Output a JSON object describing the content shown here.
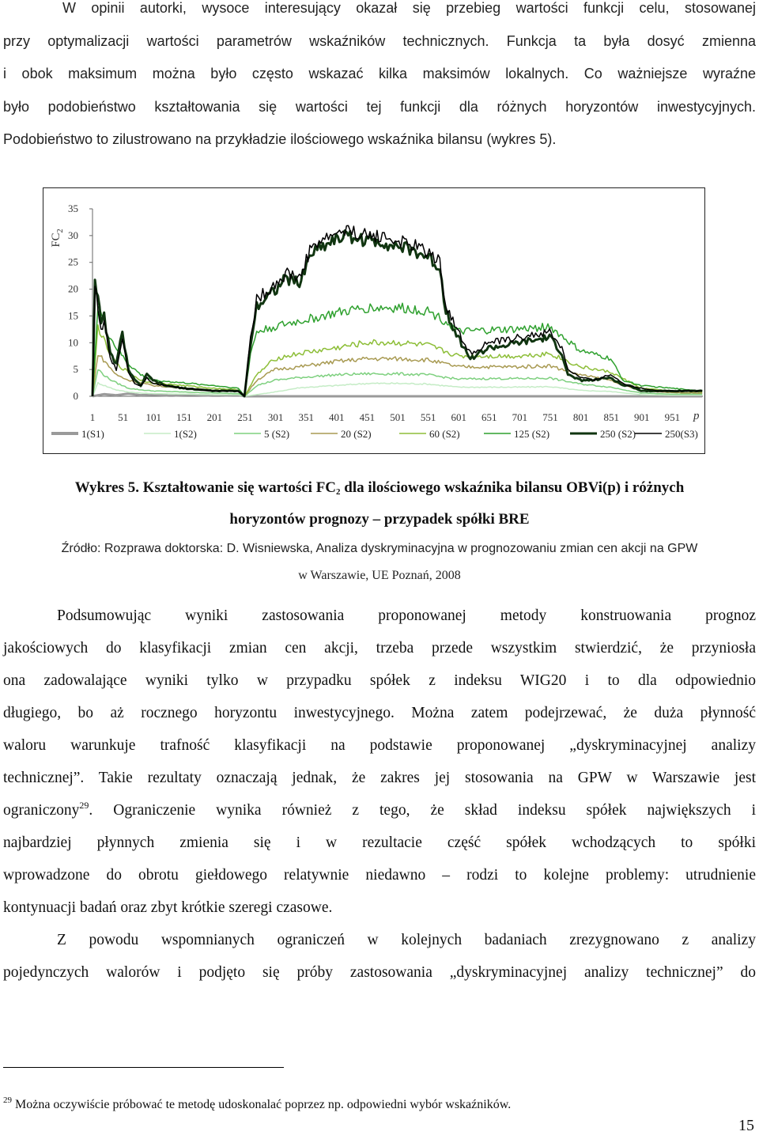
{
  "para1": "W opinii autorki, wysoce interesujący okazał się przebieg wartości funkcji celu, stosowanej przy optymalizacji wartości parametrów wskaźników technicznych. Funkcja ta była dosyć zmienna i obok maksimum można było często wskazać kilka maksimów lokalnych. Co ważniejsze wyraźne było podobieństwo kształtowania się wartości tej funkcji dla różnych horyzontów inwestycyjnych. Podobieństwo to zilustrowano na przykładzie ilościowego wskaźnika bilansu (wykres 5).",
  "para1_lines": [
    "W opinii autorki, wysoce interesujący okazał się przebieg wartości funkcji celu, stosowanej",
    "przy optymalizacji wartości parametrów wskaźników technicznych. Funkcja ta była dosyć zmienna",
    "i obok maksimum można było często wskazać kilka maksimów lokalnych. Co ważniejsze wyraźne",
    "było podobieństwo kształtowania się wartości tej funkcji dla różnych horyzontów inwestycyjnych.",
    "Podobieństwo to zilustrowano na przykładzie ilościowego wskaźnika bilansu (wykres 5)."
  ],
  "caption": {
    "line1_prefix": "Wykres 5. Kształtowanie się wartości FC",
    "line1_sub": "2",
    "line1_suffix": " dla ilościowego wskaźnika bilansu OBVi(p) i różnych",
    "line2": "horyzontów prognozy – przypadek spółki BRE"
  },
  "source": {
    "line1": "Źródło: Rozprawa doktorska:  D. Wisniewska, Analiza dyskryminacyjna w prognozowaniu zmian cen akcji na GPW",
    "line2": "w Warszawie, UE Poznań, 2008"
  },
  "para2_lines": [
    "Podsumowując wyniki zastosowania proponowanej metody konstruowania prognoz",
    "jakościowych do klasyfikacji zmian cen akcji, trzeba przede wszystkim stwierdzić, że przyniosła",
    "ona zadowalające wyniki tylko w przypadku spółek z indeksu WIG20 i to dla odpowiednio",
    "długiego, bo aż rocznego horyzontu inwestycyjnego. Można zatem podejrzewać, że duża płynność",
    "waloru warunkuje trafność klasyfikacji na podstawie proponowanej „dyskryminacyjnej analizy",
    "technicznej”. Takie rezultaty oznaczają jednak, że zakres jej stosowania na GPW w Warszawie jest",
    "ograniczony",
    "29",
    ". Ograniczenie wynika również z tego, że skład indeksu spółek największych i",
    "najbardziej płynnych zmienia się i w rezultacie  część spółek wchodzących to spółki",
    "wprowadzone do obrotu giełdowego relatywnie niedawno – rodzi to kolejne problemy: utrudnienie",
    "kontynuacji badań oraz zbyt krótkie szeregi czasowe."
  ],
  "para3_lines": [
    "Z powodu wspomnianych ograniczeń w kolejnych badaniach zrezygnowano z analizy",
    "pojedynczych walorów i podjęto się próby zastosowania „dyskryminacyjnej analizy technicznej” do"
  ],
  "footnote": {
    "mark": "29",
    "text": " Można oczywiście próbować te metodę udoskonalać poprzez np. odpowiedni wybór wskaźników."
  },
  "page_number": "15",
  "chart_data": {
    "type": "line",
    "ylabel": "FC",
    "ylabel_sub": "2",
    "xlabel": "p",
    "ylim": [
      0,
      35
    ],
    "yticks": [
      "0",
      "5",
      "10",
      "15",
      "20",
      "25",
      "30",
      "35"
    ],
    "xticks": [
      "1",
      "51",
      "101",
      "151",
      "201",
      "251",
      "301",
      "351",
      "401",
      "451",
      "501",
      "551",
      "601",
      "651",
      "701",
      "751",
      "801",
      "851",
      "901",
      "951"
    ],
    "xlim": [
      1,
      1001
    ],
    "grid": false,
    "legend_position": "bottom",
    "series": [
      {
        "name": "1(S1)",
        "color": "#9a9a9a",
        "width": 3,
        "x": [
          1,
          20,
          40,
          60,
          80,
          100,
          130,
          160,
          200,
          240,
          250,
          300,
          340,
          400,
          470,
          540,
          620,
          680,
          740,
          800,
          860,
          950,
          1000
        ],
        "y": [
          0,
          0.4,
          0.2,
          0.5,
          0.2,
          0.3,
          0.1,
          0.3,
          0.1,
          0.2,
          0,
          0,
          0,
          0,
          0,
          0,
          0,
          0,
          0,
          0,
          0,
          0,
          0
        ]
      },
      {
        "name": "1(S2)",
        "color": "#c5ecc6",
        "width": 1.5,
        "x": [
          1,
          10,
          25,
          40,
          60,
          80,
          100,
          150,
          200,
          240,
          250,
          300,
          340,
          400,
          450,
          500,
          550,
          600,
          650,
          700,
          750,
          800,
          850,
          900,
          950,
          1000
        ],
        "y": [
          0,
          2.5,
          1.8,
          1.2,
          0.8,
          0.6,
          0.5,
          0.4,
          0.3,
          0.3,
          0,
          0.8,
          1.6,
          2.0,
          2.4,
          2.4,
          2.3,
          1.7,
          1.7,
          1.7,
          1.8,
          1.1,
          0.9,
          0.3,
          0.2,
          0.2
        ]
      },
      {
        "name": "5 (S2)",
        "color": "#7ed07f",
        "width": 1.5,
        "x": [
          1,
          10,
          25,
          40,
          60,
          80,
          100,
          150,
          200,
          240,
          250,
          270,
          300,
          340,
          400,
          450,
          500,
          550,
          600,
          650,
          700,
          750,
          800,
          850,
          900,
          950,
          1000
        ],
        "y": [
          0,
          5,
          3.5,
          2.5,
          1.5,
          1.2,
          1,
          0.8,
          0.6,
          0.5,
          0,
          2,
          3,
          3.5,
          4,
          4.2,
          4.2,
          4.0,
          3.2,
          3.3,
          3.3,
          3.4,
          2.3,
          1.7,
          0.6,
          0.4,
          0.4
        ]
      },
      {
        "name": "20 (S2)",
        "color": "#a89a52",
        "width": 1.5,
        "x": [
          1,
          10,
          25,
          40,
          60,
          80,
          100,
          150,
          200,
          240,
          250,
          270,
          300,
          340,
          400,
          450,
          500,
          550,
          600,
          650,
          700,
          750,
          800,
          850,
          900,
          950,
          1000
        ],
        "y": [
          0,
          8,
          6,
          4,
          3,
          2.5,
          2,
          1.5,
          1.2,
          1,
          0,
          3,
          5,
          5.5,
          6.5,
          7,
          7,
          6.8,
          5.5,
          5.5,
          5.5,
          5.7,
          4.0,
          3.0,
          1.0,
          0.7,
          0.6
        ]
      },
      {
        "name": "60 (S2)",
        "color": "#8dbe38",
        "width": 1.5,
        "x": [
          1,
          10,
          25,
          40,
          60,
          80,
          100,
          150,
          200,
          240,
          250,
          270,
          300,
          340,
          400,
          450,
          500,
          550,
          600,
          650,
          700,
          750,
          800,
          850,
          900,
          950,
          1000
        ],
        "y": [
          0,
          13,
          9,
          6,
          4.5,
          3,
          2.5,
          2,
          1.5,
          1.2,
          0,
          4,
          7,
          8,
          9,
          10,
          10,
          9.5,
          7.5,
          7.5,
          7.5,
          8,
          5.5,
          4.5,
          1.5,
          1,
          0.8
        ]
      },
      {
        "name": "125 (S2)",
        "color": "#2fa12f",
        "width": 1.5,
        "x": [
          1,
          10,
          25,
          40,
          60,
          80,
          100,
          150,
          200,
          240,
          250,
          260,
          270,
          300,
          340,
          400,
          450,
          500,
          550,
          580,
          600,
          650,
          700,
          750,
          800,
          850,
          870,
          900,
          950,
          1000
        ],
        "y": [
          0,
          17,
          12,
          9,
          6,
          4,
          3,
          2.5,
          2,
          1.5,
          0,
          8,
          12,
          13,
          14,
          15.5,
          16.5,
          16.5,
          16,
          14,
          12,
          12.3,
          12.5,
          13,
          8.5,
          7,
          3,
          2,
          1.5,
          1
        ]
      },
      {
        "name": "250 (S2)",
        "color": "#103510",
        "width": 3,
        "x": [
          1,
          5,
          10,
          15,
          20,
          30,
          40,
          50,
          60,
          70,
          80,
          90,
          100,
          120,
          150,
          200,
          240,
          250,
          260,
          270,
          280,
          300,
          320,
          340,
          360,
          400,
          420,
          450,
          470,
          500,
          530,
          550,
          570,
          580,
          600,
          620,
          650,
          680,
          700,
          730,
          750,
          770,
          780,
          800,
          820,
          850,
          870,
          880,
          900,
          930,
          960,
          1000
        ],
        "y": [
          0,
          22,
          19,
          13,
          15,
          8,
          6,
          12,
          5,
          3,
          2,
          4,
          3,
          2,
          1.5,
          1,
          1,
          0,
          10,
          17,
          18,
          20,
          22,
          21,
          27,
          29.5,
          30,
          29,
          29,
          28,
          27,
          26,
          24,
          16,
          11,
          7,
          9,
          9.5,
          10,
          10.5,
          11,
          8,
          4,
          3,
          3,
          3.5,
          2,
          2,
          1,
          1,
          1,
          1
        ]
      },
      {
        "name": "250(S3)",
        "color": "#000000",
        "width": 1.5,
        "x": [
          1,
          5,
          10,
          15,
          20,
          30,
          40,
          50,
          60,
          70,
          80,
          90,
          100,
          120,
          150,
          200,
          240,
          250,
          260,
          270,
          280,
          300,
          320,
          340,
          360,
          400,
          420,
          450,
          470,
          500,
          530,
          550,
          570,
          580,
          600,
          620,
          650,
          680,
          700,
          730,
          750,
          770,
          780,
          800,
          820,
          850,
          870,
          880,
          900,
          930,
          960,
          1000
        ],
        "y": [
          0,
          21,
          17,
          12,
          14,
          7,
          5,
          11,
          4.5,
          2.5,
          2,
          3.5,
          2.5,
          2,
          1.5,
          1,
          1,
          0,
          11,
          18,
          19,
          21,
          23,
          22,
          28,
          30.5,
          31,
          30,
          30,
          29,
          28,
          27,
          25,
          17,
          12,
          8,
          10,
          10.5,
          11,
          11.5,
          12,
          9,
          5,
          3.5,
          3,
          4,
          2.5,
          2,
          1.5,
          1,
          1,
          1
        ]
      }
    ]
  }
}
